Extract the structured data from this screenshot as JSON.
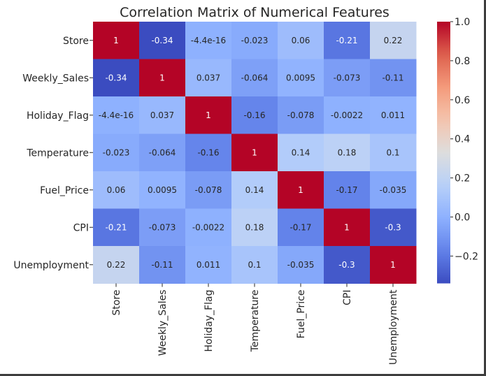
{
  "chart_data": {
    "type": "heatmap",
    "title": "Correlation Matrix of Numerical Features",
    "xlabel": "",
    "ylabel": "",
    "categories": [
      "Store",
      "Weekly_Sales",
      "Holiday_Flag",
      "Temperature",
      "Fuel_Price",
      "CPI",
      "Unemployment"
    ],
    "values": [
      [
        1,
        -0.34,
        -4.4e-16,
        -0.023,
        0.06,
        -0.21,
        0.22
      ],
      [
        -0.34,
        1,
        0.037,
        -0.064,
        0.0095,
        -0.073,
        -0.11
      ],
      [
        -4.4e-16,
        0.037,
        1,
        -0.16,
        -0.078,
        -0.0022,
        0.011
      ],
      [
        -0.023,
        -0.064,
        -0.16,
        1,
        0.14,
        0.18,
        0.1
      ],
      [
        0.06,
        0.0095,
        -0.078,
        0.14,
        1,
        -0.17,
        -0.035
      ],
      [
        -0.21,
        -0.073,
        -0.0022,
        0.18,
        -0.17,
        1,
        -0.3
      ],
      [
        0.22,
        -0.11,
        0.011,
        0.1,
        -0.035,
        -0.3,
        1
      ]
    ],
    "annotations": [
      [
        "1",
        "-0.34",
        "-4.4e-16",
        "-0.023",
        "0.06",
        "-0.21",
        "0.22"
      ],
      [
        "-0.34",
        "1",
        "0.037",
        "-0.064",
        "0.0095",
        "-0.073",
        "-0.11"
      ],
      [
        "-4.4e-16",
        "0.037",
        "1",
        "-0.16",
        "-0.078",
        "-0.0022",
        "0.011"
      ],
      [
        "-0.023",
        "-0.064",
        "-0.16",
        "1",
        "0.14",
        "0.18",
        "0.1"
      ],
      [
        "0.06",
        "0.0095",
        "-0.078",
        "0.14",
        "1",
        "-0.17",
        "-0.035"
      ],
      [
        "-0.21",
        "-0.073",
        "-0.0022",
        "0.18",
        "-0.17",
        "1",
        "-0.3"
      ],
      [
        "0.22",
        "-0.11",
        "0.011",
        "0.1",
        "-0.035",
        "-0.3",
        "1"
      ]
    ],
    "colormap": "coolwarm",
    "vmin": -0.34,
    "vmax": 1.0,
    "colorbar_ticks": [
      1.0,
      0.8,
      0.6,
      0.4,
      0.2,
      0.0,
      -0.2
    ],
    "colorbar_tick_labels": [
      "1.0",
      "0.8",
      "0.6",
      "0.4",
      "0.2",
      "0.0",
      "−0.2"
    ],
    "legend": "colorbar-right"
  }
}
